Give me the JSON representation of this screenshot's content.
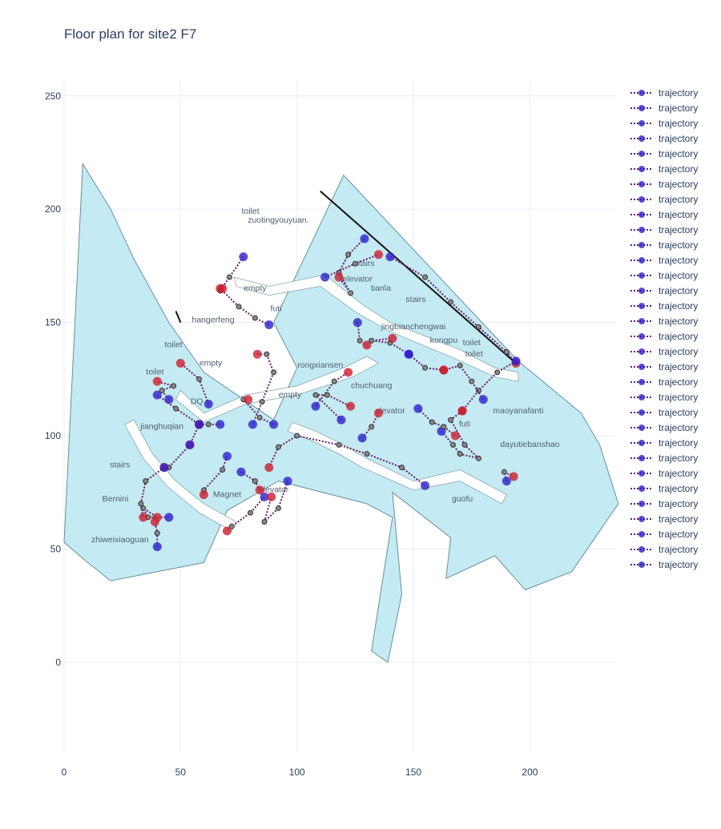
{
  "title": "Floor plan for site2 F7",
  "colors": {
    "floor_fill": "#c4eaf3",
    "floor_stroke": "#6a8f99",
    "corridor": "#ffffff",
    "grid": "#e6ecf5",
    "path_line": "#6a1b6a",
    "start_marker": "#2d21cc",
    "end_marker": "#cc1f2e",
    "waypoint": "#888888",
    "wall": "#111111"
  },
  "chart_data": {
    "type": "scatter",
    "title": "Floor plan for site2 F7",
    "xlabel": "",
    "ylabel": "",
    "xlim": [
      0,
      237
    ],
    "ylim": [
      -40,
      257
    ],
    "x_ticks": [
      0,
      50,
      100,
      150,
      200
    ],
    "y_ticks": [
      0,
      50,
      100,
      150,
      200,
      250
    ],
    "grid": true,
    "legend_position": "top-right",
    "floor_outline": [
      [
        8,
        220
      ],
      [
        20,
        200
      ],
      [
        30,
        178
      ],
      [
        45,
        150
      ],
      [
        60,
        128
      ],
      [
        90,
        107
      ],
      [
        100,
        130
      ],
      [
        90,
        150
      ],
      [
        120,
        215
      ],
      [
        195,
        133
      ],
      [
        222,
        110
      ],
      [
        230,
        96
      ],
      [
        238,
        70
      ],
      [
        218,
        40
      ],
      [
        198,
        32
      ],
      [
        185,
        47
      ],
      [
        164,
        37
      ],
      [
        166,
        55
      ],
      [
        141,
        75
      ],
      [
        145,
        30
      ],
      [
        139,
        0
      ],
      [
        132,
        5
      ],
      [
        141,
        64
      ],
      [
        130,
        70
      ],
      [
        92,
        80
      ],
      [
        70,
        67
      ],
      [
        60,
        44
      ],
      [
        20,
        36
      ],
      [
        9,
        45
      ],
      [
        0,
        53
      ]
    ],
    "corridors": [
      [
        [
          73,
          170
        ],
        [
          88,
          166
        ],
        [
          112,
          171
        ],
        [
          128,
          158
        ],
        [
          140,
          150
        ],
        [
          170,
          138
        ],
        [
          185,
          130
        ],
        [
          195,
          128
        ],
        [
          195,
          124
        ],
        [
          185,
          126
        ],
        [
          168,
          134
        ],
        [
          140,
          146
        ],
        [
          126,
          154
        ],
        [
          110,
          166
        ],
        [
          88,
          162
        ],
        [
          74,
          166
        ]
      ],
      [
        [
          50,
          120
        ],
        [
          60,
          110
        ],
        [
          78,
          118
        ],
        [
          100,
          122
        ],
        [
          120,
          130
        ],
        [
          130,
          135
        ],
        [
          135,
          132
        ],
        [
          124,
          126
        ],
        [
          100,
          118
        ],
        [
          78,
          114
        ],
        [
          60,
          106
        ],
        [
          48,
          116
        ]
      ],
      [
        [
          30,
          107
        ],
        [
          38,
          92
        ],
        [
          48,
          80
        ],
        [
          60,
          70
        ],
        [
          74,
          62
        ],
        [
          72,
          58
        ],
        [
          58,
          66
        ],
        [
          44,
          78
        ],
        [
          34,
          90
        ],
        [
          26,
          105
        ]
      ],
      [
        [
          98,
          106
        ],
        [
          108,
          102
        ],
        [
          120,
          96
        ],
        [
          130,
          90
        ],
        [
          150,
          80
        ],
        [
          170,
          85
        ],
        [
          190,
          74
        ],
        [
          188,
          70
        ],
        [
          170,
          80
        ],
        [
          150,
          76
        ],
        [
          128,
          86
        ],
        [
          118,
          92
        ],
        [
          106,
          98
        ],
        [
          96,
          102
        ]
      ]
    ],
    "walls": [
      [
        [
          110,
          208
        ],
        [
          194,
          132
        ]
      ],
      [
        [
          48,
          155
        ],
        [
          50,
          150
        ]
      ]
    ],
    "room_labels": [
      {
        "text": "toilet",
        "x": 80,
        "y": 198
      },
      {
        "text": "zuotingyouyuan.",
        "x": 92,
        "y": 194
      },
      {
        "text": "stairs",
        "x": 129,
        "y": 175
      },
      {
        "text": "elevator",
        "x": 126,
        "y": 168
      },
      {
        "text": "tianla",
        "x": 136,
        "y": 164
      },
      {
        "text": "stairs",
        "x": 151,
        "y": 159
      },
      {
        "text": "empty",
        "x": 82,
        "y": 164
      },
      {
        "text": "futi",
        "x": 91,
        "y": 155
      },
      {
        "text": "hangerfeng",
        "x": 64,
        "y": 150
      },
      {
        "text": "jingbianchengwai",
        "x": 150,
        "y": 147
      },
      {
        "text": "kongpu",
        "x": 163,
        "y": 141
      },
      {
        "text": "toilet",
        "x": 175,
        "y": 140
      },
      {
        "text": "toilet",
        "x": 176,
        "y": 135
      },
      {
        "text": "toilet",
        "x": 47,
        "y": 139
      },
      {
        "text": "empty",
        "x": 63,
        "y": 131
      },
      {
        "text": "rongxiansen",
        "x": 110,
        "y": 130
      },
      {
        "text": "toilet",
        "x": 39,
        "y": 127
      },
      {
        "text": "chuchuang",
        "x": 132,
        "y": 121
      },
      {
        "text": "empty",
        "x": 97,
        "y": 117
      },
      {
        "text": "DQ",
        "x": 57,
        "y": 114
      },
      {
        "text": "elevator",
        "x": 140,
        "y": 110
      },
      {
        "text": "maoyanafanti",
        "x": 195,
        "y": 110
      },
      {
        "text": "jianghuqian",
        "x": 42,
        "y": 103
      },
      {
        "text": "futi",
        "x": 172,
        "y": 104
      },
      {
        "text": "dayutiebanshao",
        "x": 200,
        "y": 95
      },
      {
        "text": "stairs",
        "x": 24,
        "y": 86
      },
      {
        "text": "elevator",
        "x": 90,
        "y": 75
      },
      {
        "text": "Magnet",
        "x": 70,
        "y": 73
      },
      {
        "text": "Bernini",
        "x": 22,
        "y": 71
      },
      {
        "text": "guofu",
        "x": 171,
        "y": 71
      },
      {
        "text": "zhiweixiaoguan",
        "x": 24,
        "y": 53
      }
    ],
    "series": [
      {
        "name": "trajectory",
        "points": [
          [
            77,
            179
          ],
          [
            71,
            170
          ],
          [
            67,
            164
          ],
          [
            68,
            165
          ]
        ]
      },
      {
        "name": "trajectory",
        "points": [
          [
            88,
            149
          ],
          [
            82,
            152
          ],
          [
            75,
            157
          ],
          [
            67,
            165
          ]
        ]
      },
      {
        "name": "trajectory",
        "points": [
          [
            126,
            150
          ],
          [
            127,
            142
          ],
          [
            130,
            140
          ]
        ]
      },
      {
        "name": "trajectory",
        "points": [
          [
            148,
            136
          ],
          [
            140,
            141
          ],
          [
            132,
            142
          ],
          [
            141,
            143
          ]
        ]
      },
      {
        "name": "trajectory",
        "points": [
          [
            129,
            187
          ],
          [
            122,
            180
          ],
          [
            118,
            172
          ],
          [
            123,
            163
          ],
          [
            118,
            170
          ]
        ]
      },
      {
        "name": "trajectory",
        "points": [
          [
            112,
            170
          ],
          [
            125,
            176
          ],
          [
            135,
            180
          ]
        ]
      },
      {
        "name": "trajectory",
        "points": [
          [
            140,
            179
          ],
          [
            155,
            170
          ],
          [
            166,
            159
          ],
          [
            178,
            148
          ],
          [
            190,
            137
          ],
          [
            194,
            132
          ]
        ]
      },
      {
        "name": "trajectory",
        "points": [
          [
            194,
            133
          ],
          [
            186,
            128
          ],
          [
            178,
            120
          ],
          [
            171,
            111
          ]
        ]
      },
      {
        "name": "trajectory",
        "points": [
          [
            180,
            116
          ],
          [
            175,
            124
          ],
          [
            170,
            131
          ],
          [
            163,
            129
          ]
        ]
      },
      {
        "name": "trajectory",
        "points": [
          [
            148,
            136
          ],
          [
            155,
            130
          ],
          [
            163,
            129
          ]
        ]
      },
      {
        "name": "trajectory",
        "points": [
          [
            81,
            105
          ],
          [
            85,
            115
          ],
          [
            90,
            128
          ],
          [
            87,
            136
          ],
          [
            83,
            136
          ]
        ]
      },
      {
        "name": "trajectory",
        "points": [
          [
            62,
            114
          ],
          [
            58,
            125
          ],
          [
            50,
            132
          ]
        ]
      },
      {
        "name": "trajectory",
        "points": [
          [
            45,
            116
          ],
          [
            42,
            120
          ],
          [
            47,
            122
          ],
          [
            40,
            124
          ]
        ]
      },
      {
        "name": "trajectory",
        "points": [
          [
            40,
            118
          ],
          [
            48,
            112
          ],
          [
            58,
            105
          ]
        ]
      },
      {
        "name": "trajectory",
        "points": [
          [
            67,
            105
          ],
          [
            62,
            105
          ],
          [
            58,
            105
          ]
        ]
      },
      {
        "name": "trajectory",
        "points": [
          [
            58,
            105
          ],
          [
            54,
            96
          ]
        ]
      },
      {
        "name": "trajectory",
        "points": [
          [
            54,
            96
          ],
          [
            45,
            86
          ],
          [
            43,
            86
          ]
        ]
      },
      {
        "name": "trajectory",
        "points": [
          [
            90,
            105
          ],
          [
            84,
            108
          ],
          [
            77,
            116
          ],
          [
            79,
            116
          ]
        ]
      },
      {
        "name": "trajectory",
        "points": [
          [
            70,
            91
          ],
          [
            68,
            85
          ],
          [
            60,
            76
          ],
          [
            60,
            74
          ]
        ]
      },
      {
        "name": "trajectory",
        "points": [
          [
            76,
            84
          ],
          [
            82,
            80
          ],
          [
            84,
            76
          ]
        ]
      },
      {
        "name": "trajectory",
        "points": [
          [
            86,
            73
          ],
          [
            80,
            66
          ],
          [
            72,
            60
          ],
          [
            70,
            58
          ]
        ]
      },
      {
        "name": "trajectory",
        "points": [
          [
            45,
            64
          ],
          [
            36,
            64
          ],
          [
            34,
            68
          ],
          [
            40,
            64
          ]
        ]
      },
      {
        "name": "trajectory",
        "points": [
          [
            40,
            51
          ],
          [
            40,
            57
          ],
          [
            39,
            62
          ]
        ]
      },
      {
        "name": "trajectory",
        "points": [
          [
            43,
            86
          ],
          [
            35,
            80
          ],
          [
            33,
            70
          ],
          [
            34,
            64
          ]
        ]
      },
      {
        "name": "trajectory",
        "points": [
          [
            108,
            113
          ],
          [
            116,
            124
          ],
          [
            122,
            128
          ]
        ]
      },
      {
        "name": "trajectory",
        "points": [
          [
            119,
            107
          ],
          [
            108,
            118
          ],
          [
            113,
            118
          ],
          [
            123,
            113
          ]
        ]
      },
      {
        "name": "trajectory",
        "points": [
          [
            128,
            99
          ],
          [
            132,
            104
          ],
          [
            135,
            110
          ]
        ]
      },
      {
        "name": "trajectory",
        "points": [
          [
            155,
            78
          ],
          [
            145,
            86
          ],
          [
            130,
            92
          ],
          [
            118,
            96
          ],
          [
            100,
            100
          ],
          [
            92,
            95
          ],
          [
            88,
            86
          ]
        ]
      },
      {
        "name": "trajectory",
        "points": [
          [
            162,
            102
          ],
          [
            167,
            96
          ],
          [
            170,
            92
          ],
          [
            178,
            90
          ],
          [
            172,
            96
          ],
          [
            166,
            107
          ],
          [
            171,
            111
          ]
        ]
      },
      {
        "name": "trajectory",
        "points": [
          [
            152,
            112
          ],
          [
            158,
            106
          ],
          [
            163,
            104
          ],
          [
            168,
            100
          ]
        ]
      },
      {
        "name": "trajectory",
        "points": [
          [
            190,
            80
          ],
          [
            189,
            84
          ],
          [
            193,
            82
          ]
        ]
      },
      {
        "name": "trajectory",
        "points": [
          [
            96,
            80
          ],
          [
            92,
            68
          ],
          [
            86,
            62
          ],
          [
            89,
            73
          ]
        ]
      }
    ]
  }
}
